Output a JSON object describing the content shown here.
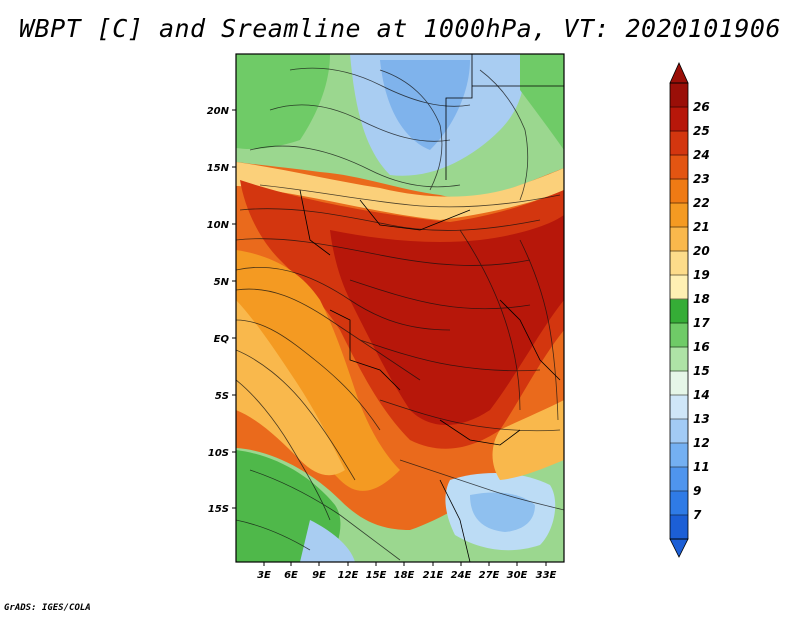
{
  "title": "WBPT [C] and Sreamline at 1000hPa, VT: 2020101906",
  "footer": "GrADS: IGES/COLA",
  "map": {
    "lat_ticks": [
      "20N",
      "15N",
      "10N",
      "5N",
      "EQ",
      "5S",
      "10S",
      "15S"
    ],
    "lon_ticks": [
      "3E",
      "6E",
      "9E",
      "12E",
      "15E",
      "18E",
      "21E",
      "24E",
      "27E",
      "30E",
      "33E"
    ]
  },
  "colorbar": {
    "labels": [
      "7",
      "9",
      "11",
      "12",
      "13",
      "14",
      "15",
      "16",
      "17",
      "18",
      "19",
      "20",
      "21",
      "22",
      "23",
      "24",
      "25",
      "26"
    ],
    "colors": [
      "#1c5fd6",
      "#2f7be6",
      "#4f95ee",
      "#74b0f2",
      "#a2cbf5",
      "#cfe6f8",
      "#e6f6e8",
      "#aee3a6",
      "#6fcb67",
      "#35ad36",
      "#fff0b3",
      "#fddc8a",
      "#f9b84c",
      "#f49a22",
      "#ef7a14",
      "#e35512",
      "#d3360f",
      "#b7170a",
      "#9a0f08"
    ]
  }
}
